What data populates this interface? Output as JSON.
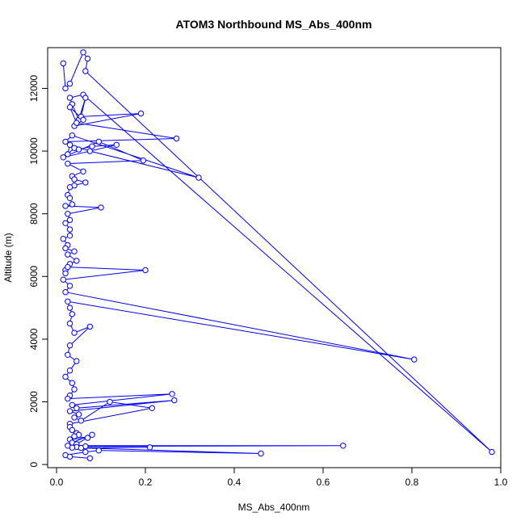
{
  "chart_data": {
    "type": "scatter",
    "title": "ATOM3 Northbound MS_Abs_400nm",
    "xlabel": "MS_Abs_400nm",
    "ylabel": "Altitude (m)",
    "xlim": [
      -0.02,
      1.0
    ],
    "ylim": [
      -100,
      13300
    ],
    "x_ticks": [
      0.0,
      0.2,
      0.4,
      0.6,
      0.8,
      1.0
    ],
    "x_tick_labels": [
      "0.0",
      "0.2",
      "0.4",
      "0.6",
      "0.8",
      "1.0"
    ],
    "y_ticks": [
      0,
      2000,
      4000,
      6000,
      8000,
      10000,
      12000
    ],
    "y_tick_labels": [
      "0",
      "2000",
      "4000",
      "6000",
      "8000",
      "10000",
      "12000"
    ],
    "grid": false,
    "legend": "none",
    "series": [
      {
        "color": "#0000ff",
        "marker": "open-circle",
        "connect": true,
        "x": [
          0.015,
          0.02,
          0.03,
          0.06,
          0.07,
          0.065,
          0.98,
          0.06,
          0.03,
          0.035,
          0.05,
          0.065,
          0.055,
          0.19,
          0.04,
          0.06,
          0.03,
          0.045,
          0.27,
          0.02,
          0.035,
          0.32,
          0.075,
          0.03,
          0.025,
          0.04,
          0.05,
          0.08,
          0.135,
          0.015,
          0.095,
          0.195,
          0.025,
          0.06,
          0.035,
          0.04,
          0.065,
          0.04,
          0.03,
          0.025,
          0.03,
          0.035,
          0.02,
          0.1,
          0.025,
          0.03,
          0.02,
          0.03,
          0.03,
          0.015,
          0.025,
          0.02,
          0.04,
          0.025,
          0.045,
          0.03,
          0.02,
          0.02,
          0.025,
          0.2,
          0.015,
          0.03,
          0.02,
          0.805,
          0.025,
          0.03,
          0.035,
          0.03,
          0.04,
          0.075,
          0.03,
          0.025,
          0.045,
          0.03,
          0.02,
          0.035,
          0.04,
          0.03,
          0.025,
          0.26,
          0.035,
          0.045,
          0.265,
          0.03,
          0.05,
          0.04,
          0.055,
          0.12,
          0.215,
          0.03,
          0.03,
          0.035,
          0.045,
          0.05,
          0.04,
          0.07,
          0.03,
          0.035,
          0.08,
          0.045,
          0.025,
          0.645,
          0.065,
          0.045,
          0.035,
          0.21,
          0.055,
          0.46,
          0.095,
          0.065,
          0.02,
          0.03,
          0.075
        ],
        "y": [
          12800,
          12000,
          12150,
          13150,
          12950,
          12550,
          400,
          11800,
          11700,
          11500,
          11000,
          11700,
          11100,
          11200,
          10800,
          11000,
          11400,
          10900,
          10400,
          10300,
          10500,
          9150,
          10000,
          10200,
          9900,
          10100,
          10050,
          10150,
          10200,
          9800,
          10300,
          9700,
          9600,
          9350,
          9200,
          9100,
          9000,
          8900,
          8850,
          8600,
          8500,
          8300,
          8250,
          8200,
          8000,
          7800,
          7700,
          7500,
          7300,
          7200,
          7000,
          6900,
          6800,
          6700,
          6500,
          6400,
          6200,
          6100,
          6300,
          6200,
          5900,
          5700,
          5500,
          3350,
          5200,
          5000,
          4800,
          4500,
          4200,
          4400,
          3800,
          3500,
          3300,
          3000,
          2800,
          2600,
          2400,
          2200,
          2100,
          2250,
          1900,
          1800,
          2050,
          1700,
          1600,
          1500,
          1400,
          2000,
          1800,
          1300,
          1200,
          1100,
          1000,
          950,
          900,
          850,
          800,
          700,
          950,
          650,
          600,
          600,
          580,
          560,
          540,
          550,
          530,
          350,
          450,
          400,
          300,
          250,
          200
        ]
      }
    ]
  }
}
